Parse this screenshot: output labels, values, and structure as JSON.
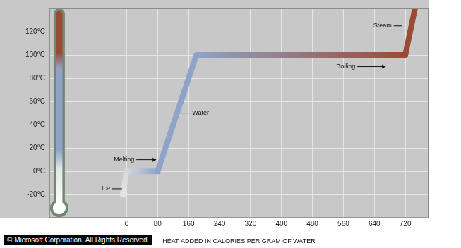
{
  "chart_data": {
    "type": "line",
    "x_label": "HEAT ADDED IN CALORIES PER GRAM OF WATER",
    "x": [
      -10,
      0,
      80,
      180,
      720,
      745
    ],
    "values": [
      -20,
      0,
      0,
      100,
      100,
      140
    ],
    "colors": [
      "#e4e4e4",
      "#d4d8de",
      "#8fa3c8",
      "#8fa3c8",
      "#9b4a35",
      "#9b4a35"
    ],
    "xlim": [
      -200,
      780
    ],
    "xticks": [
      0,
      80,
      160,
      240,
      320,
      400,
      480,
      560,
      640,
      720
    ],
    "ylim": [
      -40,
      140
    ],
    "yticks": [
      {
        "value": -20,
        "label": "-20°C"
      },
      {
        "value": 0,
        "label": "0°C"
      },
      {
        "value": 20,
        "label": "20°C"
      },
      {
        "value": 40,
        "label": "40°C"
      },
      {
        "value": 60,
        "label": "60°C"
      },
      {
        "value": 80,
        "label": "80°C"
      },
      {
        "value": 100,
        "label": "100°C"
      },
      {
        "value": 120,
        "label": "120°C"
      }
    ],
    "grid": true,
    "annotations": [
      {
        "text": "Ice",
        "x": -12,
        "y": -15
      },
      {
        "text": "Melting",
        "x": 76,
        "y": 10
      },
      {
        "text": "Water",
        "x": 142,
        "y": 50
      },
      {
        "text": "Boiling",
        "x": 669,
        "y": 90
      },
      {
        "text": "Steam",
        "x": 712,
        "y": 125
      }
    ],
    "credit": "© Microsoft Corporation. All Rights Reserved."
  }
}
